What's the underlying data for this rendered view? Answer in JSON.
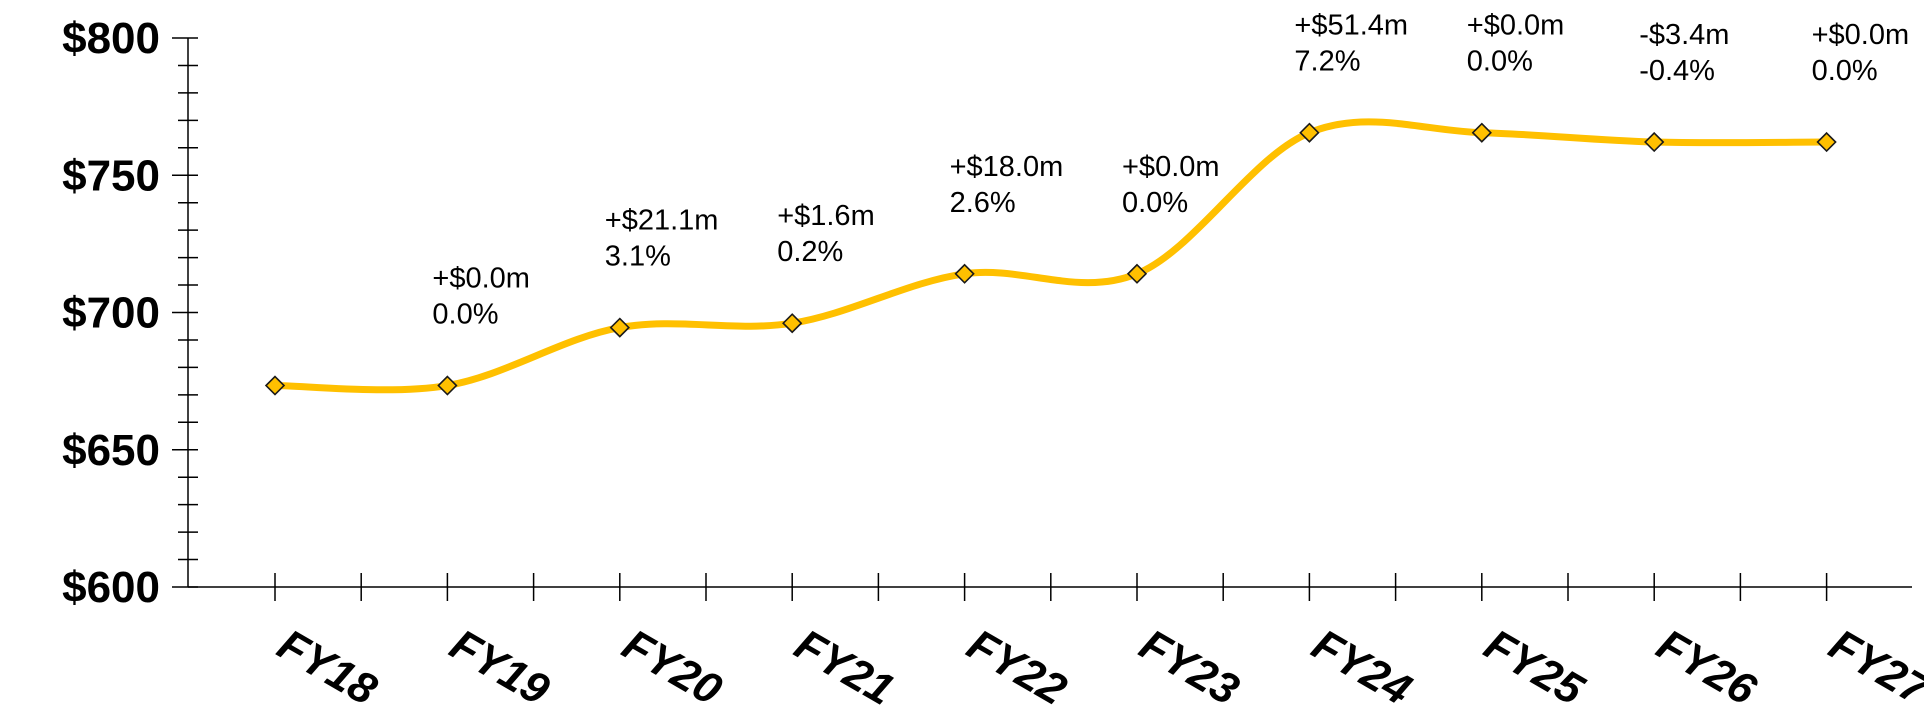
{
  "chart_data": {
    "type": "line",
    "title": "",
    "xlabel": "",
    "ylabel": "",
    "categories": [
      "FY18",
      "FY19",
      "FY20",
      "FY21",
      "FY22",
      "FY23",
      "FY24",
      "FY25",
      "FY26",
      "FY27"
    ],
    "values": [
      673.4,
      673.4,
      694.5,
      696.1,
      714.1,
      714.1,
      765.5,
      765.5,
      762.1,
      762.1
    ],
    "annotations": [
      null,
      {
        "change": "+$0.0m",
        "pct": "0.0%"
      },
      {
        "change": "+$21.1m",
        "pct": "3.1%"
      },
      {
        "change": "+$1.6m",
        "pct": "0.2%"
      },
      {
        "change": "+$18.0m",
        "pct": "2.6%"
      },
      {
        "change": "+$0.0m",
        "pct": "0.0%"
      },
      {
        "change": "+$51.4m",
        "pct": "7.2%"
      },
      {
        "change": "+$0.0m",
        "pct": "0.0%"
      },
      {
        "change": "-$3.4m",
        "pct": "-0.4%"
      },
      {
        "change": "+$0.0m",
        "pct": "0.0%"
      }
    ],
    "ylim": [
      600,
      800
    ],
    "yticks": [
      600,
      650,
      700,
      750,
      800
    ],
    "ytick_labels": [
      "$600",
      "$650",
      "$700",
      "$750",
      "$800"
    ],
    "grid": false,
    "legend": "none",
    "colors": {
      "line": "#FFC000",
      "marker_fill": "#FFC000",
      "marker_edge": "#1a1a1a",
      "axis": "#000000"
    }
  }
}
